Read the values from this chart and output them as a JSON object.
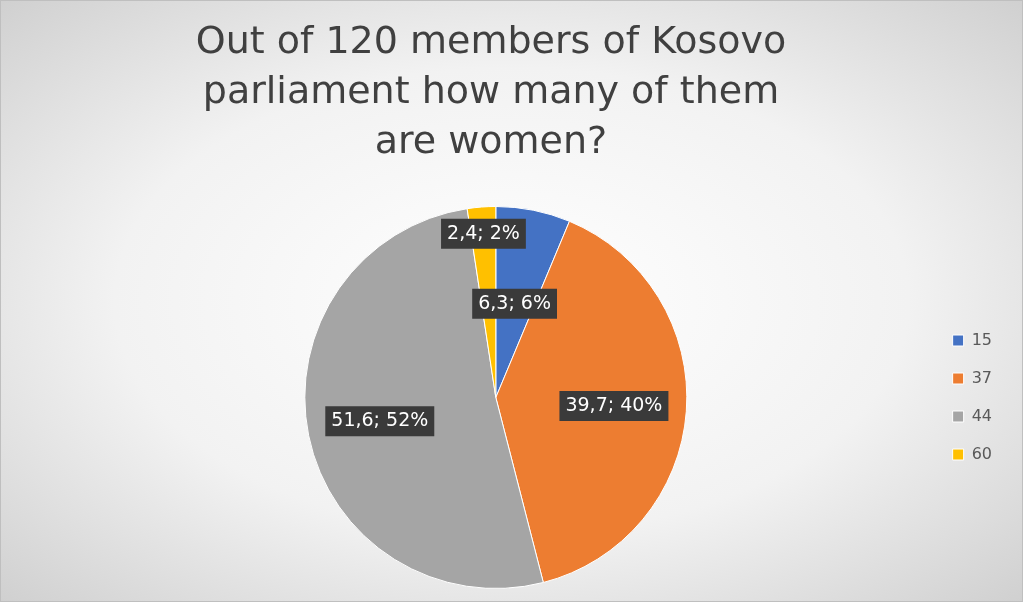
{
  "chart_data": {
    "type": "pie",
    "title": "Out of 120 members of Kosovo parliament how many of them are women?",
    "categories": [
      "15",
      "37",
      "44",
      "60"
    ],
    "values": [
      6.3,
      39.7,
      51.6,
      2.4
    ],
    "colors": [
      "#4472c4",
      "#ed7d31",
      "#a5a5a5",
      "#ffc000"
    ],
    "value_labels": [
      "6,3; 6%",
      "39,7; 40%",
      "51,6; 52%",
      "2,4; 2%"
    ],
    "legend": "right"
  }
}
